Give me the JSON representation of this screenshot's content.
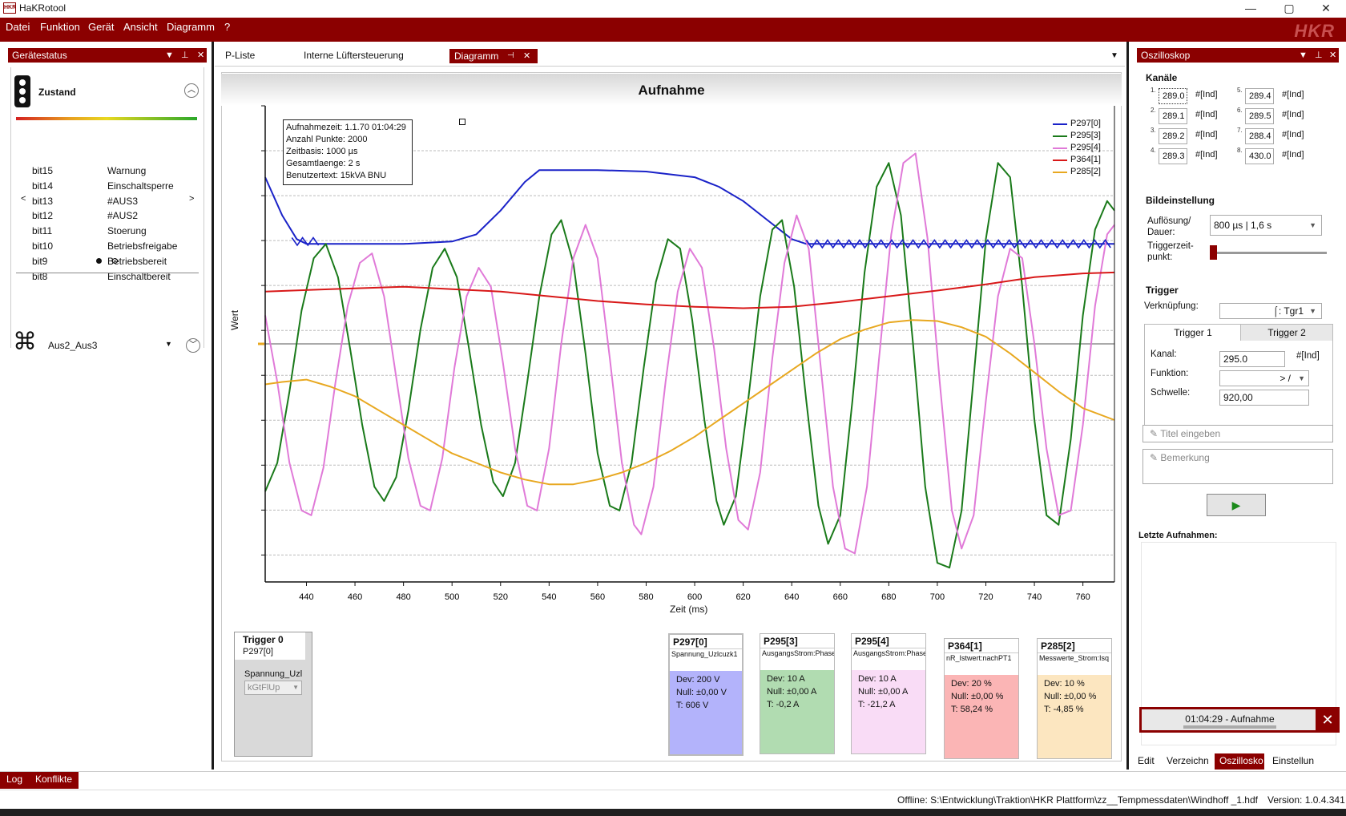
{
  "app": {
    "title": "HaKRotool",
    "logo_text": "HKR",
    "brand": "HKR"
  },
  "window_controls": {
    "minimize": "—",
    "maximize": "▢",
    "close": "✕"
  },
  "menu": [
    "Datei",
    "Funktion",
    "Gerät",
    "Ansicht",
    "Diagramm",
    "?"
  ],
  "left_panel": {
    "title": "Gerätestatus",
    "state_label": "Zustand",
    "bits": [
      {
        "bit": "bit15",
        "label": "Warnung"
      },
      {
        "bit": "bit14",
        "label": "Einschaltsperre"
      },
      {
        "bit": "bit13",
        "label": "#AUS3"
      },
      {
        "bit": "bit12",
        "label": "#AUS2"
      },
      {
        "bit": "bit11",
        "label": "Stoerung"
      },
      {
        "bit": "bit10",
        "label": "Betriebsfreigabe"
      },
      {
        "bit": "bit9",
        "label": "Betriebsbereit"
      },
      {
        "bit": "bit8",
        "label": "Einschaltbereit"
      }
    ],
    "nav_left": "<",
    "nav_right": ">",
    "device_label": "Aus2_Aus3"
  },
  "doc_tabs": [
    "P-Liste",
    "Interne Lüftersteuerung",
    "Diagramm"
  ],
  "info_box": [
    "Aufnahmezeit: 1.1.70 01:04:29",
    "Anzahl Punkte: 2000",
    "Zeitbasis: 1000 µs",
    "Gesamtlaenge: 2 s",
    "Benutzertext: 15kVA BNU"
  ],
  "colors": {
    "P297[0]": "#1a22c8",
    "P295[3]": "#1a7a1a",
    "P295[4]": "#e07ad8",
    "P364[1]": "#d81818",
    "P285[2]": "#e8a820",
    "accent": "#8b0000"
  },
  "chart_data": {
    "type": "line",
    "title": "Aufnahme",
    "xlabel": "Zeit (ms)",
    "ylabel": "Wert",
    "xlim": [
      423,
      773
    ],
    "x_ticks": [
      440,
      460,
      480,
      500,
      520,
      540,
      560,
      580,
      600,
      620,
      640,
      660,
      680,
      700,
      720,
      740,
      760
    ],
    "grid": true,
    "legend_position": "top-right",
    "series": [
      {
        "name": "P297[0]",
        "color": "#1a22c8",
        "points": [
          [
            423,
            0.85
          ],
          [
            430,
            0.77
          ],
          [
            436,
            0.72
          ],
          [
            440,
            0.71
          ],
          [
            460,
            0.71
          ],
          [
            480,
            0.71
          ],
          [
            500,
            0.715
          ],
          [
            510,
            0.73
          ],
          [
            520,
            0.78
          ],
          [
            530,
            0.84
          ],
          [
            536,
            0.865
          ],
          [
            560,
            0.865
          ],
          [
            580,
            0.862
          ],
          [
            600,
            0.85
          ],
          [
            610,
            0.83
          ],
          [
            620,
            0.8
          ],
          [
            630,
            0.76
          ],
          [
            640,
            0.72
          ],
          [
            646,
            0.71
          ],
          [
            680,
            0.71
          ],
          [
            720,
            0.71
          ],
          [
            773,
            0.71
          ]
        ]
      },
      {
        "name": "P295[3]",
        "color": "#1a7a1a",
        "points": [
          [
            423,
            0.19
          ],
          [
            428,
            0.25
          ],
          [
            433,
            0.4
          ],
          [
            438,
            0.57
          ],
          [
            443,
            0.68
          ],
          [
            448,
            0.71
          ],
          [
            453,
            0.64
          ],
          [
            458,
            0.49
          ],
          [
            463,
            0.33
          ],
          [
            468,
            0.2
          ],
          [
            472,
            0.17
          ],
          [
            477,
            0.22
          ],
          [
            482,
            0.36
          ],
          [
            487,
            0.53
          ],
          [
            492,
            0.66
          ],
          [
            497,
            0.7
          ],
          [
            502,
            0.64
          ],
          [
            507,
            0.49
          ],
          [
            512,
            0.33
          ],
          [
            517,
            0.21
          ],
          [
            521,
            0.18
          ],
          [
            526,
            0.25
          ],
          [
            531,
            0.42
          ],
          [
            536,
            0.6
          ],
          [
            541,
            0.73
          ],
          [
            545,
            0.76
          ],
          [
            550,
            0.67
          ],
          [
            555,
            0.48
          ],
          [
            560,
            0.27
          ],
          [
            565,
            0.16
          ],
          [
            569,
            0.15
          ],
          [
            574,
            0.25
          ],
          [
            579,
            0.45
          ],
          [
            584,
            0.63
          ],
          [
            589,
            0.72
          ],
          [
            594,
            0.7
          ],
          [
            599,
            0.55
          ],
          [
            604,
            0.34
          ],
          [
            609,
            0.17
          ],
          [
            612,
            0.12
          ],
          [
            617,
            0.18
          ],
          [
            622,
            0.38
          ],
          [
            627,
            0.6
          ],
          [
            632,
            0.74
          ],
          [
            636,
            0.76
          ],
          [
            641,
            0.62
          ],
          [
            646,
            0.38
          ],
          [
            651,
            0.16
          ],
          [
            655,
            0.08
          ],
          [
            660,
            0.14
          ],
          [
            665,
            0.38
          ],
          [
            670,
            0.65
          ],
          [
            675,
            0.83
          ],
          [
            680,
            0.88
          ],
          [
            685,
            0.77
          ],
          [
            690,
            0.5
          ],
          [
            695,
            0.2
          ],
          [
            700,
            0.04
          ],
          [
            705,
            0.03
          ],
          [
            710,
            0.15
          ],
          [
            715,
            0.43
          ],
          [
            720,
            0.72
          ],
          [
            725,
            0.88
          ],
          [
            730,
            0.85
          ],
          [
            735,
            0.62
          ],
          [
            740,
            0.34
          ],
          [
            745,
            0.14
          ],
          [
            750,
            0.12
          ],
          [
            755,
            0.3
          ],
          [
            760,
            0.56
          ],
          [
            765,
            0.74
          ],
          [
            770,
            0.8
          ],
          [
            773,
            0.78
          ]
        ]
      },
      {
        "name": "P295[4]",
        "color": "#e07ad8",
        "points": [
          [
            423,
            0.56
          ],
          [
            428,
            0.42
          ],
          [
            433,
            0.25
          ],
          [
            438,
            0.15
          ],
          [
            442,
            0.14
          ],
          [
            447,
            0.24
          ],
          [
            452,
            0.42
          ],
          [
            457,
            0.58
          ],
          [
            462,
            0.67
          ],
          [
            467,
            0.69
          ],
          [
            472,
            0.6
          ],
          [
            477,
            0.43
          ],
          [
            482,
            0.26
          ],
          [
            487,
            0.16
          ],
          [
            491,
            0.15
          ],
          [
            496,
            0.26
          ],
          [
            501,
            0.45
          ],
          [
            506,
            0.6
          ],
          [
            511,
            0.66
          ],
          [
            516,
            0.62
          ],
          [
            521,
            0.46
          ],
          [
            526,
            0.28
          ],
          [
            531,
            0.16
          ],
          [
            535,
            0.15
          ],
          [
            540,
            0.28
          ],
          [
            545,
            0.5
          ],
          [
            550,
            0.68
          ],
          [
            555,
            0.75
          ],
          [
            560,
            0.68
          ],
          [
            565,
            0.47
          ],
          [
            570,
            0.25
          ],
          [
            575,
            0.12
          ],
          [
            578,
            0.1
          ],
          [
            583,
            0.2
          ],
          [
            588,
            0.42
          ],
          [
            593,
            0.61
          ],
          [
            598,
            0.7
          ],
          [
            603,
            0.66
          ],
          [
            608,
            0.49
          ],
          [
            613,
            0.28
          ],
          [
            618,
            0.13
          ],
          [
            622,
            0.11
          ],
          [
            627,
            0.23
          ],
          [
            632,
            0.47
          ],
          [
            637,
            0.67
          ],
          [
            642,
            0.77
          ],
          [
            647,
            0.7
          ],
          [
            652,
            0.45
          ],
          [
            657,
            0.2
          ],
          [
            662,
            0.07
          ],
          [
            666,
            0.06
          ],
          [
            671,
            0.2
          ],
          [
            676,
            0.47
          ],
          [
            681,
            0.73
          ],
          [
            686,
            0.88
          ],
          [
            691,
            0.9
          ],
          [
            696,
            0.72
          ],
          [
            701,
            0.42
          ],
          [
            706,
            0.15
          ],
          [
            710,
            0.07
          ],
          [
            715,
            0.14
          ],
          [
            720,
            0.38
          ],
          [
            725,
            0.6
          ],
          [
            730,
            0.7
          ],
          [
            735,
            0.68
          ],
          [
            740,
            0.5
          ],
          [
            745,
            0.28
          ],
          [
            750,
            0.14
          ],
          [
            755,
            0.15
          ],
          [
            760,
            0.33
          ],
          [
            765,
            0.58
          ],
          [
            770,
            0.73
          ],
          [
            773,
            0.75
          ]
        ]
      },
      {
        "name": "P364[1]",
        "color": "#d81818",
        "points": [
          [
            423,
            0.61
          ],
          [
            450,
            0.615
          ],
          [
            480,
            0.62
          ],
          [
            500,
            0.615
          ],
          [
            520,
            0.61
          ],
          [
            540,
            0.6
          ],
          [
            560,
            0.59
          ],
          [
            580,
            0.583
          ],
          [
            600,
            0.578
          ],
          [
            620,
            0.575
          ],
          [
            640,
            0.578
          ],
          [
            660,
            0.588
          ],
          [
            680,
            0.6
          ],
          [
            700,
            0.612
          ],
          [
            720,
            0.625
          ],
          [
            740,
            0.64
          ],
          [
            760,
            0.648
          ],
          [
            773,
            0.65
          ]
        ]
      },
      {
        "name": "P285[2]",
        "color": "#e8a820",
        "points": [
          [
            423,
            0.415
          ],
          [
            430,
            0.42
          ],
          [
            440,
            0.425
          ],
          [
            450,
            0.41
          ],
          [
            460,
            0.39
          ],
          [
            470,
            0.36
          ],
          [
            480,
            0.33
          ],
          [
            490,
            0.3
          ],
          [
            500,
            0.27
          ],
          [
            510,
            0.25
          ],
          [
            520,
            0.23
          ],
          [
            530,
            0.215
          ],
          [
            540,
            0.205
          ],
          [
            550,
            0.205
          ],
          [
            560,
            0.215
          ],
          [
            570,
            0.23
          ],
          [
            580,
            0.25
          ],
          [
            590,
            0.275
          ],
          [
            600,
            0.305
          ],
          [
            610,
            0.34
          ],
          [
            620,
            0.375
          ],
          [
            630,
            0.41
          ],
          [
            640,
            0.445
          ],
          [
            650,
            0.48
          ],
          [
            660,
            0.51
          ],
          [
            670,
            0.53
          ],
          [
            680,
            0.545
          ],
          [
            690,
            0.55
          ],
          [
            700,
            0.548
          ],
          [
            710,
            0.535
          ],
          [
            720,
            0.515
          ],
          [
            730,
            0.48
          ],
          [
            740,
            0.44
          ],
          [
            750,
            0.4
          ],
          [
            760,
            0.365
          ],
          [
            773,
            0.34
          ]
        ]
      }
    ]
  },
  "trigger_card": {
    "title": "Trigger 0",
    "channel": "P297[0]",
    "signal": "Spannung_Uzl",
    "select_value": "kGtFlUp"
  },
  "channel_cards": [
    {
      "name": "P297[0]",
      "desc": "Spannung_Uzlcuzk1",
      "dev": "Dev: 200 V",
      "null": "Null: ±0,00 V",
      "t": "T:     606 V",
      "color": "#b3b3fb"
    },
    {
      "name": "P295[3]",
      "desc": "AusgangsStrom:PhaseU",
      "dev": "Dev: 10 A",
      "null": "Null: ±0,00 A",
      "t": "T:     -0,2 A",
      "color": "#b1dcb1"
    },
    {
      "name": "P295[4]",
      "desc": "AusgangsStrom:PhaseV",
      "dev": "Dev: 10 A",
      "null": "Null: ±0,00 A",
      "t": "T:     -21,2 A",
      "color": "#f9dcf6"
    },
    {
      "name": "P364[1]",
      "desc": "nR_Istwert:nachPT1",
      "dev": "Dev: 20 %",
      "null": "Null: ±0,00 %",
      "t": "T:     58,24 %",
      "color": "#fbb5b5"
    },
    {
      "name": "P285[2]",
      "desc": "Messwerte_Strom:Isq",
      "dev": "Dev: 10 %",
      "null": "Null: ±0,00 %",
      "t": "T:     -4,85 %",
      "color": "#fce6c0"
    }
  ],
  "right_panel": {
    "title": "Oszilloskop",
    "channels_label": "Kanäle",
    "channels": [
      {
        "n": "1.",
        "value": "289.0",
        "unit": "#[Ind]"
      },
      {
        "n": "2.",
        "value": "289.1",
        "unit": "#[Ind]"
      },
      {
        "n": "3.",
        "value": "289.2",
        "unit": "#[Ind]"
      },
      {
        "n": "4.",
        "value": "289.3",
        "unit": "#[Ind]"
      },
      {
        "n": "5.",
        "value": "289.4",
        "unit": "#[Ind]"
      },
      {
        "n": "6.",
        "value": "289.5",
        "unit": "#[Ind]"
      },
      {
        "n": "7.",
        "value": "288.4",
        "unit": "#[Ind]"
      },
      {
        "n": "8.",
        "value": "430.0",
        "unit": "#[Ind]"
      }
    ],
    "bild_label": "Bildeinstellung",
    "aufloesung_label": "Auflösung/ Dauer:",
    "aufloesung_value": "800 µs    | 1,6 s",
    "triggerzeit_label": "Triggerzeit- punkt:",
    "trigger_label": "Trigger",
    "verknuepfung_label": "Verknüpfung:",
    "verknuepfung_value": ": Tgr1",
    "trigger_tabs": [
      "Trigger  1",
      "Trigger  2"
    ],
    "kanal_label": "Kanal:",
    "kanal_value": "295.0",
    "kanal_unit": "#[Ind]",
    "funktion_label": "Funktion:",
    "funktion_value": ">  /",
    "schwelle_label": "Schwelle:",
    "schwelle_value": "920,00",
    "title_placeholder": "Titel eingeben",
    "bemerkung_placeholder": "Bemerkung",
    "letzte_label": "Letzte Aufnahmen:",
    "recording_item": "01:04:29 - Aufnahme",
    "bottom_tabs": [
      "Edit",
      "Verzeichn",
      "Oszillosko",
      "Einstellun"
    ]
  },
  "bottom_tabs": [
    "Log",
    "Konflikte"
  ],
  "status": {
    "path": "Offline: S:\\Entwicklung\\Traktion\\HKR Plattform\\zz__Tempmessdaten\\Windhoff _1.hdf",
    "version": "Version: 1.0.4.341"
  }
}
